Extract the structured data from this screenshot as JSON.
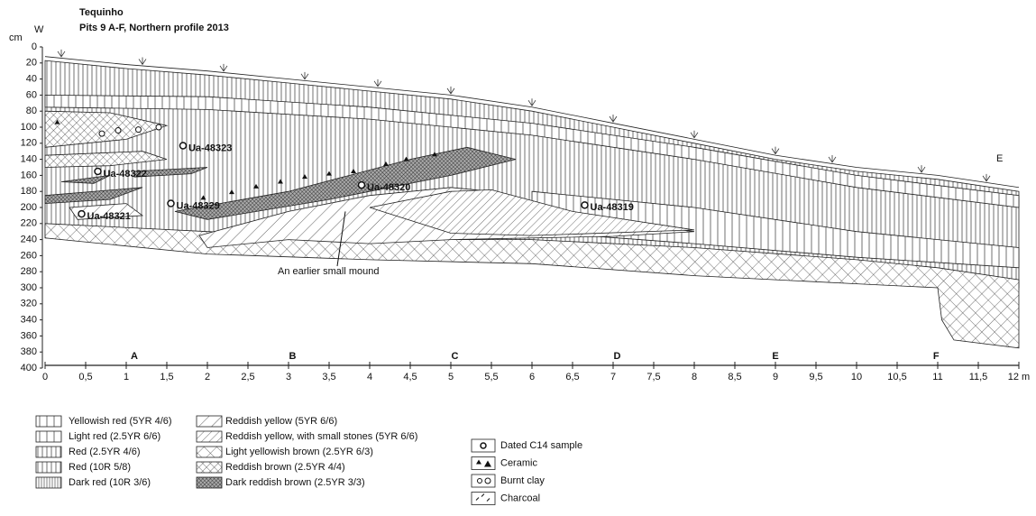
{
  "header": {
    "title": "Tequinho",
    "subtitle": "Pits 9 A-F, Northern profile 2013"
  },
  "profile": {
    "west": "W",
    "east": "E",
    "y_unit": "cm",
    "yticks": [
      0,
      20,
      40,
      60,
      80,
      100,
      120,
      140,
      160,
      180,
      200,
      220,
      240,
      260,
      280,
      300,
      320,
      340,
      360,
      380,
      400
    ],
    "xticks": [
      0,
      {
        "value": 0.5,
        "label": "0,5"
      },
      1,
      {
        "value": 1.5,
        "label": "1,5"
      },
      2,
      {
        "value": 2.5,
        "label": "2,5"
      },
      3,
      {
        "value": 3.5,
        "label": "3,5"
      },
      4,
      {
        "value": 4.5,
        "label": "4,5"
      },
      5,
      {
        "value": 5.5,
        "label": "5,5"
      },
      6,
      {
        "value": 6.5,
        "label": "6,5"
      },
      7,
      {
        "value": 7.5,
        "label": "7,5"
      },
      8,
      {
        "value": 8.5,
        "label": "8,5"
      },
      9,
      {
        "value": 9.5,
        "label": "9,5"
      },
      10,
      {
        "value": 10.5,
        "label": "10,5"
      },
      11,
      {
        "value": 11.5,
        "label": "11,5"
      },
      {
        "value": 12,
        "label": "12 m"
      }
    ],
    "pits": [
      "A",
      "B",
      "C",
      "D",
      "E",
      "F"
    ],
    "samples": [
      "Ua-48323",
      "Ua-48322",
      "Ua-48320",
      "Ua-48329",
      "Ua-48321",
      "Ua-48319"
    ],
    "annotation": "An earlier small mound"
  },
  "legend": {
    "columns": [
      [
        "Yellowish red (5YR 4/6)",
        "Light red (2.5YR 6/6)",
        "Red (2.5YR 4/6)",
        "Red (10R 5/8)",
        "Dark red (10R 3/6)"
      ],
      [
        "Reddish yellow (5YR 6/6)",
        "Reddish yellow, with small stones (5YR 6/6)",
        "Light yellowish brown (2.5YR 6/3)",
        "Reddish brown (2.5YR 4/4)",
        "Dark reddish brown (2.5YR 3/3)"
      ],
      [
        "Dated C14 sample",
        "Ceramic",
        "Burnt clay",
        "Charcoal"
      ]
    ]
  }
}
